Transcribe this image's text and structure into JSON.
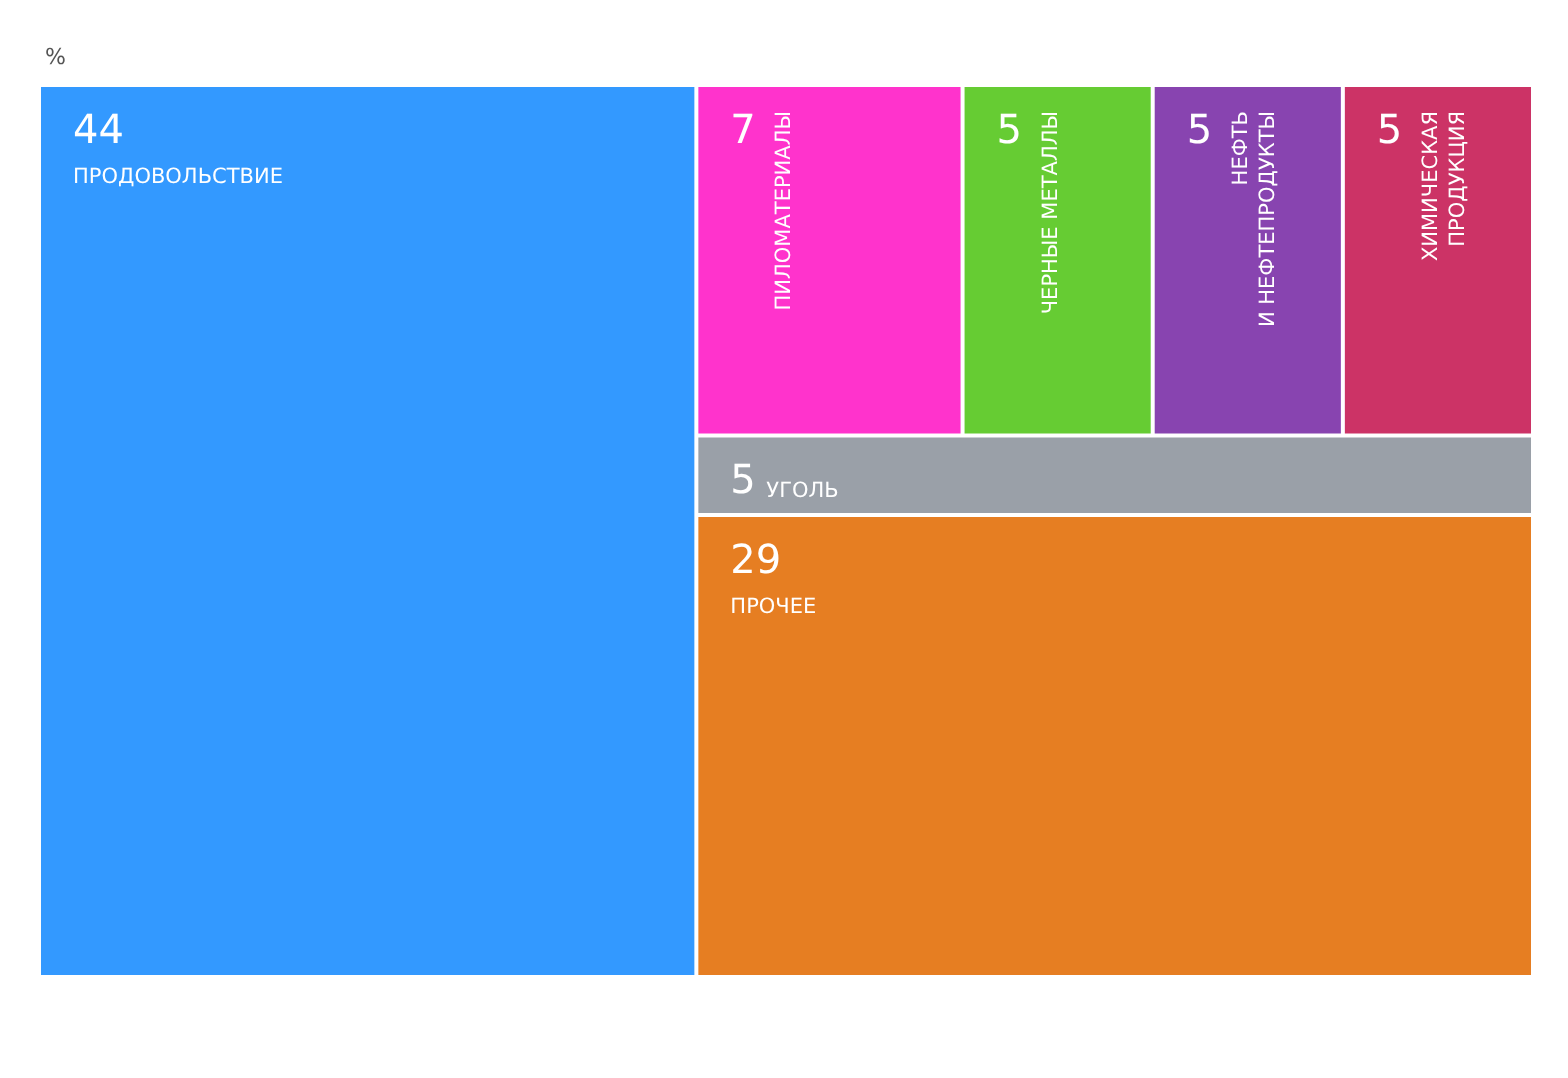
{
  "chart_data": {
    "type": "other",
    "title": "%",
    "categories": [
      "ПРОДОВОЛЬСТВИЕ",
      "ПИЛОМАТЕРИАЛЫ",
      "ЧЕРНЫЕ МЕТАЛЛЫ",
      "НЕФТЬ\nИ НЕФТЕПРОДУКТЫ",
      "ХИМИЧЕСКАЯ\nПРОДУКЦИЯ",
      "УГОЛЬ",
      "ПРОЧЕЕ"
    ],
    "values": [
      44,
      7,
      5,
      5,
      5,
      5,
      29
    ],
    "colors": [
      "#3399ff",
      "#ff33cc",
      "#66cc33",
      "#8844b0",
      "#cc3366",
      "#9aa0a8",
      "#e67e22"
    ],
    "data_labels": true
  }
}
